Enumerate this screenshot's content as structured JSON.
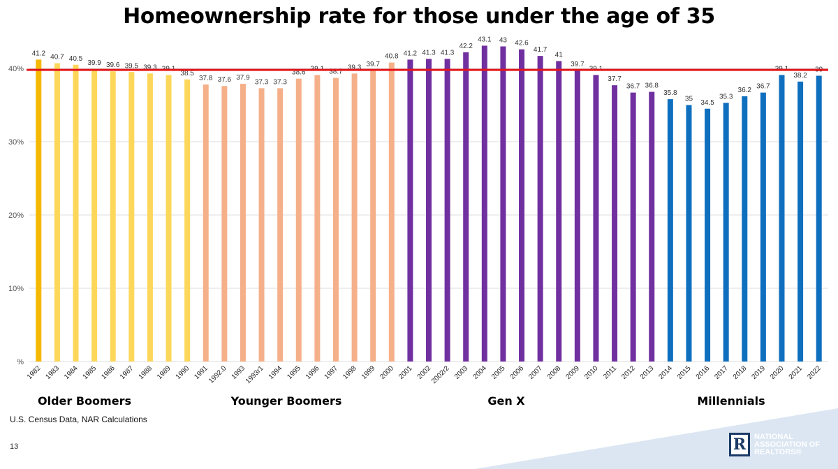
{
  "title": "Homeownership rate for those under the age of 35",
  "source": "U.S. Census Data, NAR Calculations",
  "page_number": "13",
  "logo": {
    "text": "NATIONAL\nASSOCIATION OF\nREALTORS®",
    "mark": "R"
  },
  "group_labels": [
    "Older Boomers",
    "Younger Boomers",
    "Gen X",
    "Millennials"
  ],
  "colors": {
    "reference_line": "#e3151b",
    "first_bar": "#f5b800",
    "older_boomers": "#fcd75a",
    "younger_boomers": "#f5b08a",
    "gen_x": "#7030a0",
    "millennials": "#0f6fbf",
    "corner_shape": "#dbe6f2"
  },
  "chart_data": {
    "type": "bar",
    "title": "Homeownership rate for those under the age of 35",
    "xlabel": "",
    "ylabel": "",
    "ylim": [
      0,
      44
    ],
    "yticks": [
      {
        "value": 0,
        "label": "%"
      },
      {
        "value": 10,
        "label": "10%"
      },
      {
        "value": 20,
        "label": "20%"
      },
      {
        "value": 30,
        "label": "30%"
      },
      {
        "value": 40,
        "label": "40%"
      }
    ],
    "grid": true,
    "reference_line": 39.8,
    "categories": [
      "1982",
      "1983",
      "1984",
      "1985",
      "1986",
      "1987",
      "1988",
      "1989",
      "1990",
      "1991",
      "1992.0",
      "1993",
      "1993r1",
      "1994",
      "1995",
      "1996",
      "1997",
      "1998",
      "1999",
      "2000",
      "2001",
      "2002",
      "2002r2",
      "2003",
      "2004",
      "2005",
      "2006",
      "2007",
      "2008",
      "2009",
      "2010",
      "2011",
      "2012",
      "2013",
      "2014",
      "2015",
      "2016",
      "2017",
      "2018",
      "2019",
      "2020",
      "2021",
      "2022"
    ],
    "values": [
      41.2,
      40.7,
      40.5,
      39.9,
      39.6,
      39.5,
      39.3,
      39.1,
      38.5,
      37.8,
      37.6,
      37.9,
      37.3,
      37.3,
      38.6,
      39.1,
      38.7,
      39.3,
      39.7,
      40.8,
      41.2,
      41.3,
      41.3,
      42.2,
      43.1,
      43,
      42.6,
      41.7,
      41,
      39.7,
      39.1,
      37.7,
      36.7,
      36.8,
      35.8,
      35,
      34.5,
      35.3,
      36.2,
      36.7,
      39.1,
      38.2,
      39
    ],
    "value_labels": [
      "41.2",
      "40.7",
      "40.5",
      "39.9",
      "39.6",
      "39.5",
      "39.3",
      "39.1",
      "38.5",
      "37.8",
      "37.6",
      "37.9",
      "37.3",
      "37.3",
      "38.6",
      "39.1",
      "38.7",
      "39.3",
      "39.7",
      "40.8",
      "41.2",
      "41.3",
      "41.3",
      "42.2",
      "43.1",
      "43",
      "42.6",
      "41.7",
      "41",
      "39.7",
      "39.1",
      "37.7",
      "36.7",
      "36.8",
      "35.8",
      "35",
      "34.5",
      "35.3",
      "36.2",
      "36.7",
      "39.1",
      "38.2",
      "39"
    ],
    "groups": [
      {
        "name": "Older Boomers",
        "start": 0,
        "end": 8
      },
      {
        "name": "Younger Boomers",
        "start": 9,
        "end": 19
      },
      {
        "name": "Gen X",
        "start": 20,
        "end": 33
      },
      {
        "name": "Millennials",
        "start": 34,
        "end": 42
      }
    ]
  }
}
